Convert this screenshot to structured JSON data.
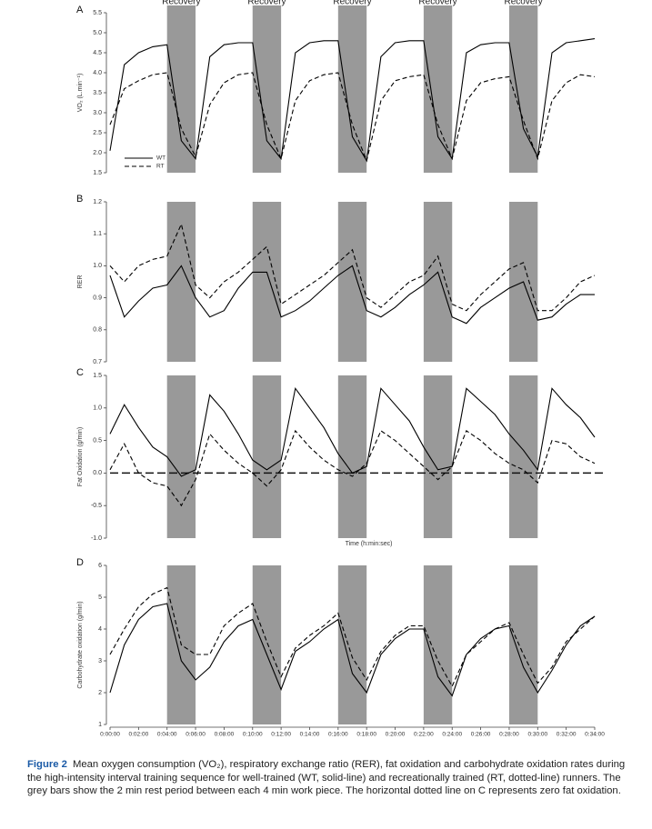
{
  "chart_data": [
    {
      "type": "line",
      "panel": "A",
      "ylabel": "VO₂ (L.min⁻¹)",
      "x": [
        0,
        60,
        120,
        180,
        240,
        300,
        360,
        420,
        480,
        540,
        600,
        660,
        720,
        780,
        840,
        900,
        960,
        1020,
        1080,
        1140,
        1200,
        1260,
        1320,
        1380,
        1440,
        1500,
        1560,
        1620,
        1680,
        1740,
        1800,
        1860,
        1920,
        1980,
        2040
      ],
      "xlim": [
        0,
        2040
      ],
      "ylim": [
        1.5,
        5.5
      ],
      "yticks": [
        1.5,
        {
          "value": 2,
          "label": "2.0"
        },
        2.5,
        {
          "value": 3,
          "label": "3.0"
        },
        3.5,
        {
          "value": 4,
          "label": "4.0"
        },
        4.5,
        {
          "value": 5,
          "label": "5.0"
        },
        5.5
      ],
      "bands": [
        [
          240,
          360
        ],
        [
          600,
          720
        ],
        [
          960,
          1080
        ],
        [
          1320,
          1440
        ],
        [
          1680,
          1800
        ]
      ],
      "band_labels": [
        "Recovery",
        "Recovery",
        "Recovery",
        "Recovery",
        "Recovery"
      ],
      "legend": "lower left",
      "series": [
        {
          "name": "WT",
          "color": "#000000",
          "line_style": "solid",
          "values": [
            2.05,
            4.2,
            4.5,
            4.65,
            4.7,
            2.3,
            1.85,
            4.4,
            4.7,
            4.75,
            4.75,
            2.3,
            1.85,
            4.5,
            4.75,
            4.8,
            4.8,
            2.4,
            1.8,
            4.4,
            4.75,
            4.8,
            4.8,
            2.4,
            1.85,
            4.5,
            4.7,
            4.75,
            4.75,
            2.6,
            1.9,
            4.5,
            4.75,
            4.8,
            4.85
          ]
        },
        {
          "name": "RT",
          "color": "#000000",
          "line_style": "dashed",
          "values": [
            2.7,
            3.6,
            3.8,
            3.95,
            4.0,
            2.6,
            1.9,
            3.2,
            3.75,
            3.95,
            4.0,
            2.7,
            1.85,
            3.3,
            3.8,
            3.95,
            4.0,
            2.7,
            1.8,
            3.3,
            3.8,
            3.9,
            3.95,
            2.7,
            1.85,
            3.3,
            3.75,
            3.85,
            3.9,
            2.8,
            1.85,
            3.3,
            3.75,
            3.95,
            3.9
          ]
        }
      ]
    },
    {
      "type": "line",
      "panel": "B",
      "ylabel": "RER",
      "x": [
        0,
        60,
        120,
        180,
        240,
        300,
        360,
        420,
        480,
        540,
        600,
        660,
        720,
        780,
        840,
        900,
        960,
        1020,
        1080,
        1140,
        1200,
        1260,
        1320,
        1380,
        1440,
        1500,
        1560,
        1620,
        1680,
        1740,
        1800,
        1860,
        1920,
        1980,
        2040
      ],
      "xlim": [
        0,
        2040
      ],
      "ylim": [
        0.7,
        1.2
      ],
      "yticks": [
        0.7,
        0.8,
        0.9,
        {
          "value": 1,
          "label": "1.0"
        },
        1.1,
        1.2
      ],
      "bands": [
        [
          240,
          360
        ],
        [
          600,
          720
        ],
        [
          960,
          1080
        ],
        [
          1320,
          1440
        ],
        [
          1680,
          1800
        ]
      ],
      "series": [
        {
          "name": "WT",
          "color": "#000000",
          "line_style": "solid",
          "values": [
            0.97,
            0.84,
            0.89,
            0.93,
            0.94,
            1.0,
            0.9,
            0.84,
            0.86,
            0.93,
            0.98,
            0.98,
            0.84,
            0.86,
            0.89,
            0.93,
            0.97,
            1.0,
            0.86,
            0.84,
            0.87,
            0.91,
            0.94,
            0.98,
            0.84,
            0.82,
            0.87,
            0.9,
            0.93,
            0.95,
            0.83,
            0.84,
            0.88,
            0.91,
            0.91
          ]
        },
        {
          "name": "RT",
          "color": "#000000",
          "line_style": "dashed",
          "values": [
            1.0,
            0.95,
            1.0,
            1.02,
            1.03,
            1.13,
            0.94,
            0.9,
            0.95,
            0.98,
            1.02,
            1.06,
            0.88,
            0.91,
            0.94,
            0.97,
            1.01,
            1.05,
            0.9,
            0.87,
            0.91,
            0.95,
            0.97,
            1.03,
            0.88,
            0.86,
            0.91,
            0.95,
            0.99,
            1.01,
            0.86,
            0.86,
            0.9,
            0.95,
            0.97
          ]
        }
      ]
    },
    {
      "type": "line",
      "panel": "C",
      "ylabel": "Fat Oxidation (g/min)",
      "xlabel": "Time (h:min:sec)",
      "x": [
        0,
        60,
        120,
        180,
        240,
        300,
        360,
        420,
        480,
        540,
        600,
        660,
        720,
        780,
        840,
        900,
        960,
        1020,
        1080,
        1140,
        1200,
        1260,
        1320,
        1380,
        1440,
        1500,
        1560,
        1620,
        1680,
        1740,
        1800,
        1860,
        1920,
        1980,
        2040
      ],
      "xlim": [
        0,
        2040
      ],
      "ylim": [
        -1.0,
        1.5
      ],
      "yticks": [
        {
          "value": -1,
          "label": "-1.0"
        },
        -0.5,
        {
          "value": 0,
          "label": "0.0"
        },
        0.5,
        {
          "value": 1,
          "label": "1.0"
        },
        1.5
      ],
      "reference_line": 0,
      "bands": [
        [
          240,
          360
        ],
        [
          600,
          720
        ],
        [
          960,
          1080
        ],
        [
          1320,
          1440
        ],
        [
          1680,
          1800
        ]
      ],
      "series": [
        {
          "name": "WT",
          "color": "#000000",
          "line_style": "solid",
          "values": [
            0.6,
            1.05,
            0.7,
            0.4,
            0.25,
            -0.05,
            0.05,
            1.2,
            0.95,
            0.6,
            0.2,
            0.05,
            0.2,
            1.3,
            1.0,
            0.7,
            0.3,
            0.0,
            0.1,
            1.3,
            1.05,
            0.8,
            0.4,
            0.05,
            0.1,
            1.3,
            1.1,
            0.9,
            0.6,
            0.35,
            0.05,
            1.3,
            1.05,
            0.85,
            0.55
          ]
        },
        {
          "name": "RT",
          "color": "#000000",
          "line_style": "dashed",
          "values": [
            0.05,
            0.45,
            0.0,
            -0.15,
            -0.2,
            -0.5,
            -0.1,
            0.6,
            0.35,
            0.15,
            0.0,
            -0.2,
            0.05,
            0.65,
            0.4,
            0.2,
            0.05,
            -0.05,
            0.15,
            0.65,
            0.5,
            0.3,
            0.1,
            -0.1,
            0.1,
            0.65,
            0.5,
            0.3,
            0.15,
            0.05,
            -0.15,
            0.5,
            0.45,
            0.25,
            0.15
          ]
        }
      ]
    },
    {
      "type": "line",
      "panel": "D",
      "ylabel": "Carbohydrate oxidation (g/min)",
      "x": [
        0,
        60,
        120,
        180,
        240,
        300,
        360,
        420,
        480,
        540,
        600,
        660,
        720,
        780,
        840,
        900,
        960,
        1020,
        1080,
        1140,
        1200,
        1260,
        1320,
        1380,
        1440,
        1500,
        1560,
        1620,
        1680,
        1740,
        1800,
        1860,
        1920,
        1980,
        2040
      ],
      "xlim": [
        0,
        2040
      ],
      "ylim": [
        1,
        6
      ],
      "yticks": [
        1,
        2,
        3,
        4,
        5,
        6
      ],
      "xticks": [
        {
          "value": 0,
          "label": "0:00:00"
        },
        {
          "value": 120,
          "label": "0:02:00"
        },
        {
          "value": 240,
          "label": "0:04:00"
        },
        {
          "value": 360,
          "label": "0:06:00"
        },
        {
          "value": 480,
          "label": "0:08:00"
        },
        {
          "value": 600,
          "label": "0:10:00"
        },
        {
          "value": 720,
          "label": "0:12:00"
        },
        {
          "value": 840,
          "label": "0:14:00"
        },
        {
          "value": 960,
          "label": "0:16:00"
        },
        {
          "value": 1080,
          "label": "0:18:00"
        },
        {
          "value": 1200,
          "label": "0:20:00"
        },
        {
          "value": 1320,
          "label": "0:22:00"
        },
        {
          "value": 1440,
          "label": "0:24:00"
        },
        {
          "value": 1560,
          "label": "0:26:00"
        },
        {
          "value": 1680,
          "label": "0:28:00"
        },
        {
          "value": 1800,
          "label": "0:30:00"
        },
        {
          "value": 1920,
          "label": "0:32:00"
        },
        {
          "value": 2040,
          "label": "0:34:00"
        }
      ],
      "bands": [
        [
          240,
          360
        ],
        [
          600,
          720
        ],
        [
          960,
          1080
        ],
        [
          1320,
          1440
        ],
        [
          1680,
          1800
        ]
      ],
      "series": [
        {
          "name": "WT",
          "color": "#000000",
          "line_style": "solid",
          "values": [
            2.0,
            3.5,
            4.3,
            4.7,
            4.8,
            3.0,
            2.4,
            2.8,
            3.6,
            4.1,
            4.3,
            3.2,
            2.1,
            3.3,
            3.6,
            4.0,
            4.3,
            2.6,
            2.0,
            3.2,
            3.7,
            4.0,
            4.0,
            2.5,
            1.9,
            3.2,
            3.7,
            4.0,
            4.1,
            2.8,
            2.0,
            2.7,
            3.5,
            4.1,
            4.4
          ]
        },
        {
          "name": "RT",
          "color": "#000000",
          "line_style": "dashed",
          "values": [
            3.2,
            4.0,
            4.7,
            5.1,
            5.3,
            3.5,
            3.2,
            3.2,
            4.1,
            4.5,
            4.8,
            3.6,
            2.5,
            3.4,
            3.8,
            4.1,
            4.5,
            3.1,
            2.4,
            3.3,
            3.8,
            4.1,
            4.1,
            3.0,
            2.2,
            3.2,
            3.6,
            4.0,
            4.2,
            3.2,
            2.3,
            2.8,
            3.6,
            4.0,
            4.4
          ]
        }
      ]
    }
  ],
  "caption": {
    "label": "Figure 2",
    "text": "Mean oxygen consumption (VO₂), respiratory exchange ratio (RER), fat oxidation and carbohydrate oxidation rates during the high-intensity interval training sequence for well-trained (WT, solid-line) and recreationally trained (RT, dotted-line) runners. The grey bars show the 2 min rest period between each 4 min work piece. The horizontal dotted line on C represents zero fat oxidation."
  }
}
